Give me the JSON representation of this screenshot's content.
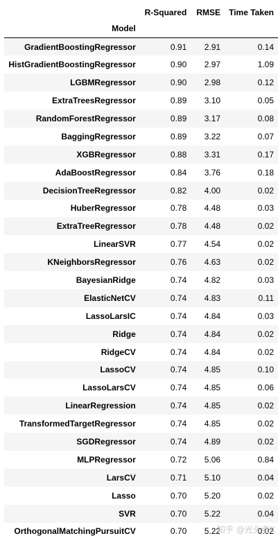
{
  "table": {
    "index_name": "Model",
    "columns": [
      "R-Squared",
      "RMSE",
      "Time Taken"
    ],
    "rows": [
      {
        "model": "GradientBoostingRegressor",
        "r_squared": "0.91",
        "rmse": "2.91",
        "time": "0.14"
      },
      {
        "model": "HistGradientBoostingRegressor",
        "r_squared": "0.90",
        "rmse": "2.97",
        "time": "1.09"
      },
      {
        "model": "LGBMRegressor",
        "r_squared": "0.90",
        "rmse": "2.98",
        "time": "0.12"
      },
      {
        "model": "ExtraTreesRegressor",
        "r_squared": "0.89",
        "rmse": "3.10",
        "time": "0.05"
      },
      {
        "model": "RandomForestRegressor",
        "r_squared": "0.89",
        "rmse": "3.17",
        "time": "0.08"
      },
      {
        "model": "BaggingRegressor",
        "r_squared": "0.89",
        "rmse": "3.22",
        "time": "0.07"
      },
      {
        "model": "XGBRegressor",
        "r_squared": "0.88",
        "rmse": "3.31",
        "time": "0.17"
      },
      {
        "model": "AdaBoostRegressor",
        "r_squared": "0.84",
        "rmse": "3.76",
        "time": "0.18"
      },
      {
        "model": "DecisionTreeRegressor",
        "r_squared": "0.82",
        "rmse": "4.00",
        "time": "0.02"
      },
      {
        "model": "HuberRegressor",
        "r_squared": "0.78",
        "rmse": "4.48",
        "time": "0.03"
      },
      {
        "model": "ExtraTreeRegressor",
        "r_squared": "0.78",
        "rmse": "4.48",
        "time": "0.02"
      },
      {
        "model": "LinearSVR",
        "r_squared": "0.77",
        "rmse": "4.54",
        "time": "0.02"
      },
      {
        "model": "KNeighborsRegressor",
        "r_squared": "0.76",
        "rmse": "4.63",
        "time": "0.02"
      },
      {
        "model": "BayesianRidge",
        "r_squared": "0.74",
        "rmse": "4.82",
        "time": "0.03"
      },
      {
        "model": "ElasticNetCV",
        "r_squared": "0.74",
        "rmse": "4.83",
        "time": "0.11"
      },
      {
        "model": "LassoLarsIC",
        "r_squared": "0.74",
        "rmse": "4.84",
        "time": "0.03"
      },
      {
        "model": "Ridge",
        "r_squared": "0.74",
        "rmse": "4.84",
        "time": "0.02"
      },
      {
        "model": "RidgeCV",
        "r_squared": "0.74",
        "rmse": "4.84",
        "time": "0.02"
      },
      {
        "model": "LassoCV",
        "r_squared": "0.74",
        "rmse": "4.85",
        "time": "0.10"
      },
      {
        "model": "LassoLarsCV",
        "r_squared": "0.74",
        "rmse": "4.85",
        "time": "0.06"
      },
      {
        "model": "LinearRegression",
        "r_squared": "0.74",
        "rmse": "4.85",
        "time": "0.02"
      },
      {
        "model": "TransformedTargetRegressor",
        "r_squared": "0.74",
        "rmse": "4.85",
        "time": "0.02"
      },
      {
        "model": "SGDRegressor",
        "r_squared": "0.74",
        "rmse": "4.89",
        "time": "0.02"
      },
      {
        "model": "MLPRegressor",
        "r_squared": "0.72",
        "rmse": "5.06",
        "time": "0.84"
      },
      {
        "model": "LarsCV",
        "r_squared": "0.71",
        "rmse": "5.10",
        "time": "0.04"
      },
      {
        "model": "Lasso",
        "r_squared": "0.70",
        "rmse": "5.20",
        "time": "0.02"
      },
      {
        "model": "SVR",
        "r_squared": "0.70",
        "rmse": "5.22",
        "time": "0.04"
      },
      {
        "model": "OrthogonalMatchingPursuitCV",
        "r_squared": "0.70",
        "rmse": "5.22",
        "time": "0.02"
      }
    ]
  },
  "watermark": "知乎 @光头老K",
  "colors": {
    "row_stripe": "#f5f5f5",
    "row_plain": "#ffffff",
    "text": "#000000"
  }
}
